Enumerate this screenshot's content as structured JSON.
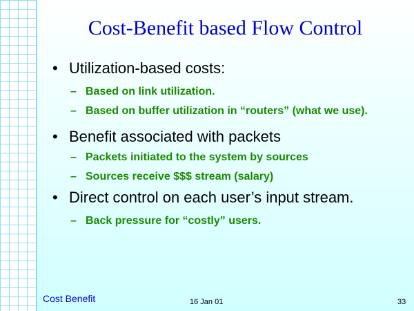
{
  "slide": {
    "title": "Cost-Benefit based Flow Control",
    "bullets": [
      {
        "symbol": "•",
        "text": "Utilization-based costs:",
        "subitems": [
          {
            "symbol": "–",
            "text": "Based on link utilization."
          },
          {
            "symbol": "–",
            "text": "Based on buffer utilization in “routers” (what we use)."
          }
        ]
      },
      {
        "symbol": "•",
        "text": "Benefit associated with packets",
        "subitems": [
          {
            "symbol": "–",
            "text": "Packets initiated to the system by sources"
          },
          {
            "symbol": "–",
            "text": "Sources receive $$$ stream (salary)"
          }
        ]
      },
      {
        "symbol": "•",
        "text": "Direct control on each user’s input stream.",
        "subitems": [
          {
            "symbol": "–",
            "text": "Back pressure for “costly” users."
          }
        ]
      }
    ]
  },
  "footer": {
    "left": "Cost Benefit",
    "date": "16 Jan 01",
    "page": "33"
  }
}
